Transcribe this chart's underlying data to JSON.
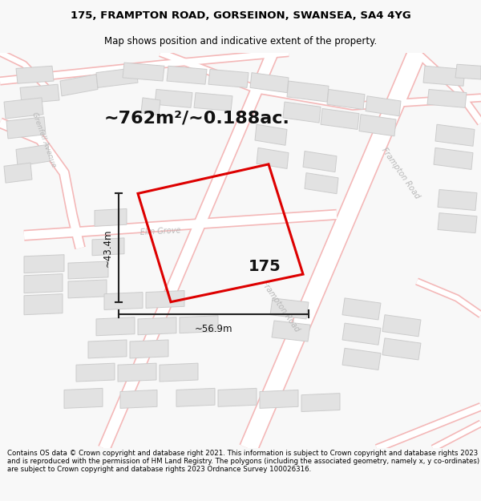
{
  "title_line1": "175, FRAMPTON ROAD, GORSEINON, SWANSEA, SA4 4YG",
  "title_line2": "Map shows position and indicative extent of the property.",
  "area_text": "~762m²/~0.188ac.",
  "label_175": "175",
  "label_width": "~56.9m",
  "label_height": "~43.4m",
  "footer_text": "Contains OS data © Crown copyright and database right 2021. This information is subject to Crown copyright and database rights 2023 and is reproduced with the permission of HM Land Registry. The polygons (including the associated geometry, namely x, y co-ordinates) are subject to Crown copyright and database rights 2023 Ordnance Survey 100026316.",
  "bg_color": "#f8f8f8",
  "map_bg": "#ffffff",
  "road_color": "#f4b8b8",
  "block_face": "#e2e2e2",
  "block_edge": "#cccccc",
  "property_color": "#dd0000",
  "dim_color": "#222222",
  "road_label_color": "#b8b8b8",
  "title_fontsize": 9.5,
  "subtitle_fontsize": 8.5,
  "area_fontsize": 16,
  "label_fontsize": 14,
  "dim_fontsize": 8.5,
  "footer_fontsize": 6.2
}
